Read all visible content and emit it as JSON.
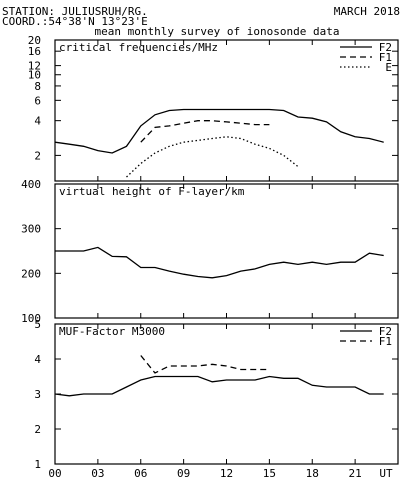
{
  "header": {
    "station": "STATION: JULIUSRUH/RG.",
    "month": "MARCH 2018",
    "coord": "COORD.:54°38'N 13°23'E",
    "subtitle": "mean monthly survey of ionosonde data"
  },
  "x_axis": {
    "ticks": [
      0,
      3,
      6,
      9,
      12,
      15,
      18,
      21
    ],
    "tick_labels": [
      "00",
      "03",
      "06",
      "09",
      "12",
      "15",
      "18",
      "21"
    ],
    "unit_label": "UT",
    "range": [
      0,
      24
    ]
  },
  "chart_data": [
    {
      "type": "line",
      "title": "critical frequencies/MHz",
      "scale": "log",
      "ylim": [
        1.2,
        20
      ],
      "yticks": [
        2,
        4,
        6,
        8,
        10,
        12,
        16,
        20
      ],
      "legend_placement": "top-right",
      "series": [
        {
          "name": "F2",
          "style": "solid",
          "x": [
            0,
            1,
            2,
            3,
            4,
            5,
            6,
            7,
            8,
            9,
            10,
            11,
            12,
            13,
            14,
            15,
            16,
            17,
            18,
            19,
            20,
            21,
            22,
            23
          ],
          "y": [
            2.6,
            2.5,
            2.4,
            2.2,
            2.1,
            2.4,
            3.6,
            4.5,
            4.9,
            5.0,
            5.0,
            5.0,
            5.0,
            5.0,
            5.0,
            5.0,
            4.9,
            4.3,
            4.2,
            3.9,
            3.2,
            2.9,
            2.8,
            2.6
          ]
        },
        {
          "name": "F1",
          "style": "dashed",
          "x": [
            6,
            7,
            8,
            9,
            10,
            11,
            12,
            13,
            14,
            15
          ],
          "y": [
            2.6,
            3.5,
            3.6,
            3.8,
            4.0,
            4.0,
            3.9,
            3.8,
            3.7,
            3.7
          ]
        },
        {
          "name": "E",
          "style": "dotted",
          "x": [
            5,
            6,
            7,
            8,
            9,
            10,
            11,
            12,
            13,
            14,
            15,
            16,
            17
          ],
          "y": [
            1.3,
            1.7,
            2.1,
            2.4,
            2.6,
            2.7,
            2.8,
            2.9,
            2.8,
            2.5,
            2.3,
            2.0,
            1.6
          ]
        }
      ]
    },
    {
      "type": "line",
      "title": "virtual height of F-layer/km",
      "ylim": [
        100,
        400
      ],
      "yticks": [
        100,
        200,
        300,
        400
      ],
      "series": [
        {
          "style": "solid",
          "x": [
            0,
            1,
            2,
            3,
            4,
            5,
            6,
            7,
            8,
            9,
            10,
            11,
            12,
            13,
            14,
            15,
            16,
            17,
            18,
            19,
            20,
            21,
            22,
            23
          ],
          "y": [
            250,
            250,
            250,
            258,
            238,
            237,
            213,
            213,
            205,
            198,
            193,
            190,
            195,
            205,
            210,
            220,
            225,
            220,
            225,
            220,
            225,
            225,
            245,
            240
          ]
        }
      ]
    },
    {
      "type": "line",
      "title": "MUF-Factor M3000",
      "ylim": [
        1,
        5
      ],
      "yticks": [
        1,
        2,
        3,
        4,
        5
      ],
      "legend_placement": "top-right",
      "series": [
        {
          "name": "F2",
          "style": "solid",
          "x": [
            0,
            1,
            2,
            3,
            4,
            5,
            6,
            7,
            8,
            9,
            10,
            11,
            12,
            13,
            14,
            15,
            16,
            17,
            18,
            19,
            20,
            21,
            22,
            23
          ],
          "y": [
            3.0,
            2.95,
            3.0,
            3.0,
            3.0,
            3.2,
            3.4,
            3.5,
            3.5,
            3.5,
            3.5,
            3.35,
            3.4,
            3.4,
            3.4,
            3.5,
            3.45,
            3.45,
            3.25,
            3.2,
            3.2,
            3.2,
            3.0,
            3.0
          ]
        },
        {
          "name": "F1",
          "style": "dashed",
          "x": [
            6,
            7,
            8,
            9,
            10,
            11,
            12,
            13,
            14,
            15
          ],
          "y": [
            4.1,
            3.6,
            3.8,
            3.8,
            3.8,
            3.85,
            3.8,
            3.7,
            3.7,
            3.7
          ]
        }
      ]
    }
  ]
}
